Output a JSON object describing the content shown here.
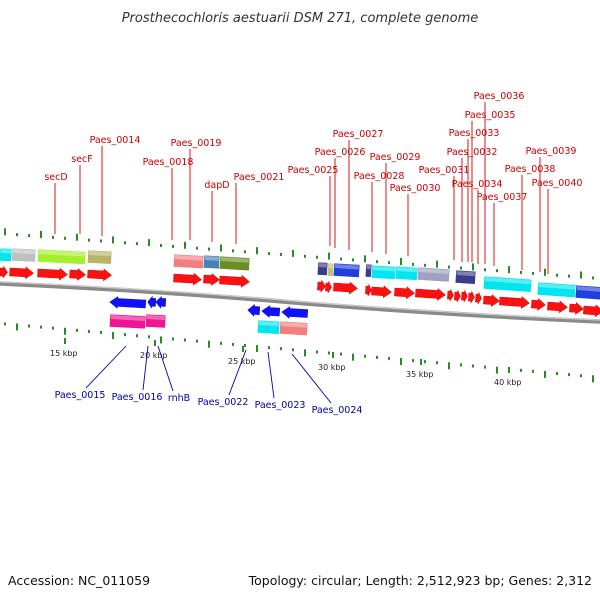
{
  "title": "Prosthecochloris aestuarii DSM 271, complete genome",
  "footer": {
    "accession": "Accession: NC_011059",
    "summary": "Topology: circular; Length: 2,512,923 bp; Genes: 2,312"
  },
  "colors": {
    "forward_label": "#cc0000",
    "reverse_label": "#0000aa",
    "backbone": "#777777",
    "gc_tick": "#2a8a2a"
  },
  "scale_labels": [
    "15 kbp",
    "20 kbp",
    "25 kbp",
    "30 kbp",
    "35 kbp",
    "40 kbp"
  ],
  "forward_labels": [
    "secD",
    "secF",
    "Paes_0014",
    "Paes_0018",
    "Paes_0019",
    "dapD",
    "Paes_0021",
    "Paes_0025",
    "Paes_0026",
    "Paes_0027",
    "Paes_0028",
    "Paes_0029",
    "Paes_0030",
    "Paes_0031",
    "Paes_0032",
    "Paes_0033",
    "Paes_0034",
    "Paes_0035",
    "Paes_0036",
    "Paes_0037",
    "Paes_0038",
    "Paes_0039",
    "Paes_0040"
  ],
  "reverse_labels": [
    "Paes_0015",
    "Paes_0016",
    "rnhB",
    "Paes_0022",
    "Paes_0023",
    "Paes_0024"
  ]
}
